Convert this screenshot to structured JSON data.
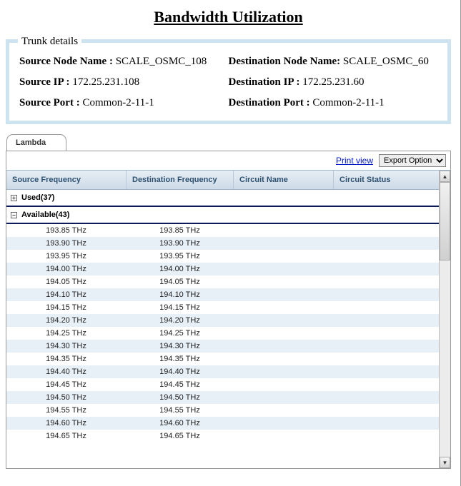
{
  "title": "Bandwidth Utilization",
  "trunk": {
    "legend": "Trunk details",
    "left": [
      {
        "label": "Source Node Name :",
        "value": "SCALE_OSMC_108"
      },
      {
        "label": "Source IP :",
        "value": "172.25.231.108"
      },
      {
        "label": "Source Port :",
        "value": "Common-2-11-1"
      }
    ],
    "right": [
      {
        "label": "Destination Node Name:",
        "value": "SCALE_OSMC_60"
      },
      {
        "label": "Destination IP :",
        "value": "172.25.231.60"
      },
      {
        "label": "Destination Port :",
        "value": "Common-2-11-1"
      }
    ]
  },
  "tabs": {
    "active_label": "Lambda"
  },
  "toolbar": {
    "print_label": "Print view",
    "export_label": "Export Option"
  },
  "grid": {
    "columns": [
      "Source Frequency",
      "Destination Frequency",
      "Circuit Name",
      "Circuit Status"
    ],
    "groups": [
      {
        "label": "Used(37)",
        "expanded": false
      },
      {
        "label": "Available(43)",
        "expanded": true
      }
    ],
    "rows": [
      {
        "src": "193.85 THz",
        "dst": "193.85 THz",
        "name": "",
        "status": ""
      },
      {
        "src": "193.90 THz",
        "dst": "193.90 THz",
        "name": "",
        "status": ""
      },
      {
        "src": "193.95 THz",
        "dst": "193.95 THz",
        "name": "",
        "status": ""
      },
      {
        "src": "194.00 THz",
        "dst": "194.00 THz",
        "name": "",
        "status": ""
      },
      {
        "src": "194.05 THz",
        "dst": "194.05 THz",
        "name": "",
        "status": ""
      },
      {
        "src": "194.10 THz",
        "dst": "194.10 THz",
        "name": "",
        "status": ""
      },
      {
        "src": "194.15 THz",
        "dst": "194.15 THz",
        "name": "",
        "status": ""
      },
      {
        "src": "194.20 THz",
        "dst": "194.20 THz",
        "name": "",
        "status": ""
      },
      {
        "src": "194.25 THz",
        "dst": "194.25 THz",
        "name": "",
        "status": ""
      },
      {
        "src": "194.30 THz",
        "dst": "194.30 THz",
        "name": "",
        "status": ""
      },
      {
        "src": "194.35 THz",
        "dst": "194.35 THz",
        "name": "",
        "status": ""
      },
      {
        "src": "194.40 THz",
        "dst": "194.40 THz",
        "name": "",
        "status": ""
      },
      {
        "src": "194.45 THz",
        "dst": "194.45 THz",
        "name": "",
        "status": ""
      },
      {
        "src": "194.50 THz",
        "dst": "194.50 THz",
        "name": "",
        "status": ""
      },
      {
        "src": "194.55 THz",
        "dst": "194.55 THz",
        "name": "",
        "status": ""
      },
      {
        "src": "194.60 THz",
        "dst": "194.60 THz",
        "name": "",
        "status": ""
      },
      {
        "src": "194.65 THz",
        "dst": "194.65 THz",
        "name": "",
        "status": ""
      }
    ]
  },
  "colors": {
    "trunk_border": "#cde3ef",
    "header_text": "#2d5171",
    "header_bg_top": "#e7eef5",
    "header_bg_bottom": "#cddae7",
    "row_alt": "#e7f0f7",
    "group_underline": "#0a1a5a",
    "link": "#0018c7"
  }
}
